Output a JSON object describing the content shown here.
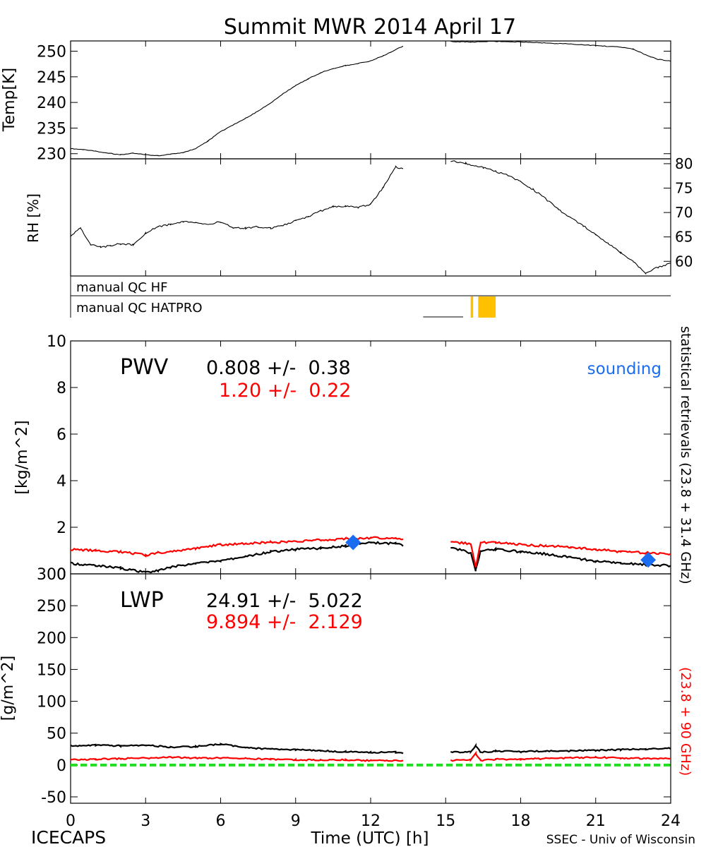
{
  "title": "Summit MWR 2014 April 17",
  "footer": {
    "left": "ICECAPS",
    "center": "Time (UTC) [h]",
    "right": "SSEC - Univ of Wisconsin"
  },
  "colors": {
    "black": "#000000",
    "red": "#ff0000",
    "sounding": "#1a6cf0",
    "qc": "#ffc000",
    "zero_line": "#22dd22"
  },
  "right_labels": {
    "statistical": "statistical retrievals (23.8 + 31.4 GHz)",
    "red_retrieval": "(23.8 + 90 GHz)"
  },
  "qc": {
    "hf_label": "manual QC HF",
    "hatpro_label": "manual QC HATPRO",
    "hatpro_line_hours": [
      16.0,
      16.1
    ],
    "hatpro_box_hours": [
      16.3,
      17.0
    ],
    "hf_dash_hours": [
      14.1,
      15.7
    ]
  },
  "chart_data": [
    {
      "type": "line",
      "name": "temperature",
      "ylabel": "Temp[K]",
      "ylim": [
        229,
        252
      ],
      "yticks": [
        230,
        235,
        240,
        245,
        250
      ],
      "xlim": [
        0,
        24
      ],
      "series": [
        {
          "name": "Temp",
          "color": "#000000",
          "x": [
            0,
            0.5,
            1,
            1.5,
            2,
            2.5,
            3,
            3.5,
            4,
            4.5,
            5,
            5.5,
            6,
            6.5,
            7,
            7.5,
            8,
            8.5,
            9,
            9.5,
            10,
            10.5,
            11,
            11.5,
            12,
            12.5,
            13,
            13.3,
            15.2,
            16,
            17,
            18,
            19,
            20,
            21,
            22,
            22.5,
            23,
            23.5,
            24
          ],
          "y": [
            231,
            230.8,
            230.5,
            230.1,
            229.8,
            230.1,
            229.8,
            229.6,
            229.9,
            230.2,
            231,
            232.5,
            234.3,
            235.6,
            236.9,
            238.3,
            239.9,
            241.7,
            243.3,
            244.6,
            245.8,
            246.6,
            247.2,
            247.6,
            248.1,
            249.1,
            250.3,
            251,
            251.9,
            251.8,
            251.9,
            251.8,
            251.6,
            251.4,
            251.1,
            250.8,
            250.4,
            249.3,
            248.4,
            248.1
          ]
        }
      ]
    },
    {
      "type": "line",
      "name": "relative-humidity",
      "ylabel": "RH [%]",
      "ylim": [
        57,
        81
      ],
      "yticks": [
        60,
        65,
        70,
        75,
        80
      ],
      "xlim": [
        0,
        24
      ],
      "series": [
        {
          "name": "RH",
          "color": "#000000",
          "x": [
            0,
            0.4,
            0.8,
            1.2,
            1.6,
            2,
            2.5,
            3,
            3.5,
            4,
            4.5,
            5,
            5.5,
            6,
            6.5,
            7,
            7.5,
            8,
            8.5,
            9,
            9.5,
            10,
            10.5,
            11,
            11.5,
            12,
            12.5,
            13,
            13.3,
            15.2,
            15.8,
            16.5,
            17,
            17.5,
            18,
            18.5,
            19,
            19.5,
            20,
            20.5,
            21,
            21.5,
            22,
            22.5,
            23,
            23.5,
            24
          ],
          "y": [
            65.2,
            66.8,
            63.5,
            62.9,
            63.2,
            63.6,
            63.4,
            65.8,
            67.1,
            67.6,
            68.2,
            67.8,
            67.6,
            68.1,
            66.9,
            66.8,
            67.1,
            66.8,
            67.4,
            68.3,
            69.1,
            70.3,
            71.2,
            71.3,
            71.1,
            71.7,
            75.1,
            79.4,
            78.8,
            80.6,
            80.1,
            79.2,
            78.4,
            77.6,
            76.3,
            74.7,
            72.8,
            70.7,
            68.9,
            67.3,
            65.4,
            63.6,
            61.8,
            59.9,
            57.6,
            58.8,
            59.6
          ]
        }
      ]
    },
    {
      "type": "line",
      "name": "pwv",
      "ylabel": "[kg/m^2]",
      "ylim": [
        0,
        10
      ],
      "yticks": [
        0,
        2,
        4,
        6,
        8,
        10
      ],
      "xlim": [
        0,
        24
      ],
      "panel_label": "PWV",
      "stats": [
        {
          "text": "0.808 +/-  0.38",
          "color": "#000000"
        },
        {
          "text": "1.20 +/-  0.22",
          "color": "#ff0000"
        }
      ],
      "legend": "sounding",
      "series": [
        {
          "name": "statistical retrieval",
          "color": "#000000",
          "x": [
            0,
            1,
            2,
            3,
            3.5,
            4,
            5,
            6,
            7,
            8,
            9,
            10,
            11,
            12,
            13,
            13.3,
            15.2,
            16,
            16.2,
            16.4,
            17,
            18,
            19,
            20,
            21,
            22,
            23,
            24
          ],
          "y": [
            0.45,
            0.35,
            0.25,
            0.05,
            0.15,
            0.3,
            0.45,
            0.55,
            0.75,
            0.95,
            1.05,
            1.1,
            1.2,
            1.35,
            1.3,
            1.2,
            1.15,
            0.9,
            0.15,
            1.0,
            1.05,
            0.95,
            0.85,
            0.7,
            0.55,
            0.45,
            0.4,
            0.35
          ]
        },
        {
          "name": "23.8 + 90 GHz retrieval",
          "color": "#ff0000",
          "x": [
            0,
            1,
            2,
            3,
            3.5,
            4,
            5,
            6,
            7,
            8,
            9,
            10,
            11,
            12,
            13,
            13.3,
            15.2,
            16,
            16.2,
            16.4,
            17,
            18,
            19,
            20,
            21,
            22,
            23,
            24
          ],
          "y": [
            1.05,
            1.0,
            0.95,
            0.8,
            0.9,
            0.95,
            1.1,
            1.25,
            1.3,
            1.35,
            1.4,
            1.45,
            1.5,
            1.55,
            1.5,
            1.45,
            1.35,
            1.3,
            0.3,
            1.35,
            1.35,
            1.25,
            1.2,
            1.15,
            1.05,
            0.95,
            0.9,
            0.85
          ]
        }
      ],
      "sounding_points": {
        "x": [
          11.3,
          23.1
        ],
        "y": [
          1.35,
          0.6
        ]
      }
    },
    {
      "type": "line",
      "name": "lwp",
      "ylabel": "[g/m^2]",
      "ylim": [
        -60,
        300
      ],
      "yticks": [
        -50,
        0,
        50,
        100,
        150,
        200,
        250,
        300
      ],
      "xlim": [
        0,
        24
      ],
      "xticks": [
        0,
        3,
        6,
        9,
        12,
        15,
        18,
        21,
        24
      ],
      "panel_label": "LWP",
      "stats": [
        {
          "text": "24.91 +/-  5.022",
          "color": "#000000"
        },
        {
          "text": "9.894 +/-  2.129",
          "color": "#ff0000"
        }
      ],
      "series": [
        {
          "name": "statistical retrieval",
          "color": "#000000",
          "x": [
            0,
            1,
            2,
            3,
            4,
            5,
            6,
            7,
            8,
            9,
            10,
            11,
            12,
            13,
            13.3,
            15.2,
            16,
            16.2,
            16.4,
            17,
            18,
            19,
            20,
            21,
            22,
            23,
            24
          ],
          "y": [
            30,
            31,
            30,
            31,
            28,
            29,
            33,
            27,
            25,
            24,
            22,
            21,
            20,
            20,
            19,
            20,
            21,
            30,
            20,
            22,
            21,
            22,
            22,
            23,
            24,
            25,
            26
          ]
        },
        {
          "name": "23.8 + 90 GHz retrieval",
          "color": "#ff0000",
          "x": [
            0,
            1,
            2,
            3,
            4,
            5,
            6,
            7,
            8,
            9,
            10,
            11,
            12,
            13,
            13.3,
            15.2,
            16,
            16.2,
            16.4,
            17,
            18,
            19,
            20,
            21,
            22,
            23,
            24
          ],
          "y": [
            8,
            9,
            10,
            11,
            12,
            11,
            11,
            10,
            9,
            8,
            8,
            8,
            7,
            7,
            7,
            7,
            8,
            18,
            7,
            9,
            9,
            10,
            11,
            12,
            11,
            10,
            10
          ]
        }
      ],
      "zero_line": 0
    }
  ]
}
